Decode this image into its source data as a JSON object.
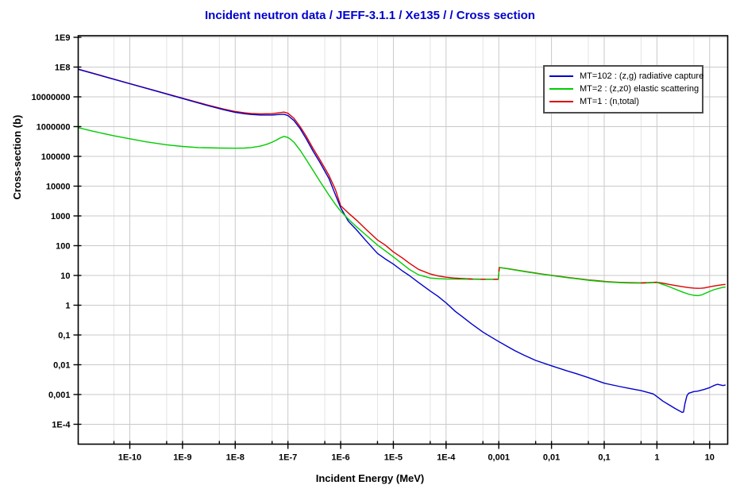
{
  "title": {
    "text": "Incident neutron data / JEFF-3.1.1 / Xe135 / / Cross section",
    "color": "#0000cc"
  },
  "axes": {
    "x": {
      "title": "Incident Energy (MeV)",
      "scale": "log",
      "major_ticks": [
        {
          "v": 1e-10,
          "label": "1E-10"
        },
        {
          "v": 1e-09,
          "label": "1E-9"
        },
        {
          "v": 1e-08,
          "label": "1E-8"
        },
        {
          "v": 1e-07,
          "label": "1E-7"
        },
        {
          "v": 1e-06,
          "label": "1E-6"
        },
        {
          "v": 1e-05,
          "label": "1E-5"
        },
        {
          "v": 0.0001,
          "label": "1E-4"
        },
        {
          "v": 0.001,
          "label": "0,001"
        },
        {
          "v": 0.01,
          "label": "0,01"
        },
        {
          "v": 0.1,
          "label": "0,1"
        },
        {
          "v": 1,
          "label": "1"
        },
        {
          "v": 10,
          "label": "10"
        }
      ],
      "minor_ticks": [
        5e-11,
        5e-10,
        5e-09,
        5e-08,
        5e-07,
        5e-06,
        5e-05,
        0.0005,
        0.005,
        0.05,
        0.5,
        5
      ]
    },
    "y": {
      "title": "Cross-section (b)",
      "scale": "log",
      "major_ticks": [
        {
          "v": 1000000000.0,
          "label": "1E9"
        },
        {
          "v": 100000000.0,
          "label": "1E8"
        },
        {
          "v": 10000000.0,
          "label": "10000000"
        },
        {
          "v": 1000000.0,
          "label": "1000000"
        },
        {
          "v": 100000.0,
          "label": "100000"
        },
        {
          "v": 10000.0,
          "label": "10000"
        },
        {
          "v": 1000.0,
          "label": "1000"
        },
        {
          "v": 100,
          "label": "100"
        },
        {
          "v": 10,
          "label": "10"
        },
        {
          "v": 1,
          "label": "1"
        },
        {
          "v": 0.1,
          "label": "0,1"
        },
        {
          "v": 0.01,
          "label": "0,01"
        },
        {
          "v": 0.001,
          "label": "0,001"
        },
        {
          "v": 0.0001,
          "label": "1E-4"
        }
      ]
    }
  },
  "legend": {
    "entries": [
      {
        "label": "MT=102 : (z,g) radiative capture",
        "color": "#0000cc"
      },
      {
        "label": "MT=2 : (z,z0) elastic scattering",
        "color": "#00cc00"
      },
      {
        "label": "MT=1 : (n,total)",
        "color": "#dd0000"
      }
    ]
  },
  "chart_data": {
    "type": "line",
    "title": "Incident neutron data / JEFF-3.1.1 / Xe135 / / Cross section",
    "xlabel": "Incident Energy (MeV)",
    "ylabel": "Cross-section (b)",
    "xscale": "log",
    "yscale": "log",
    "xlim": [
      1.05e-11,
      22
    ],
    "ylim": [
      2.15e-05,
      1130000000.0
    ],
    "grid": {
      "major_color": "#c9c9c9",
      "minor_color": "#e4e4e4"
    },
    "legend_position": "top-right",
    "series": [
      {
        "name": "MT=102 : (z,g) radiative capture",
        "color": "#0000cc",
        "points": [
          [
            1.05e-11,
            84000000.0
          ],
          [
            3e-11,
            50000000.0
          ],
          [
            1e-10,
            27500000.0
          ],
          [
            3e-10,
            16000000.0
          ],
          [
            1e-09,
            8800000.0
          ],
          [
            3e-09,
            5100000.0
          ],
          [
            6e-09,
            3700000.0
          ],
          [
            1e-08,
            3000000.0
          ],
          [
            1.5e-08,
            2700000.0
          ],
          [
            2e-08,
            2550000.0
          ],
          [
            3e-08,
            2450000.0
          ],
          [
            5e-08,
            2450000.0
          ],
          [
            7e-08,
            2550000.0
          ],
          [
            8.4e-08,
            2600000.0
          ],
          [
            1e-07,
            2350000.0
          ],
          [
            1.3e-07,
            1600000.0
          ],
          [
            1.7e-07,
            850000.0
          ],
          [
            2.2e-07,
            400000.0
          ],
          [
            3e-07,
            150000.0
          ],
          [
            4e-07,
            65000.0
          ],
          [
            6e-07,
            18000.0
          ],
          [
            8e-07,
            5000.0
          ],
          [
            1e-06,
            1900.0
          ],
          [
            1.4e-06,
            660.0
          ],
          [
            2e-06,
            340.0
          ],
          [
            3e-06,
            150.0
          ],
          [
            5e-06,
            55.0
          ],
          [
            7e-06,
            36.0
          ],
          [
            1e-05,
            24.0
          ],
          [
            1.5e-05,
            14.0
          ],
          [
            2e-05,
            10.0
          ],
          [
            3e-05,
            5.8
          ],
          [
            5e-05,
            3.0
          ],
          [
            7e-05,
            2.0
          ],
          [
            0.0001,
            1.2
          ],
          [
            0.00015,
            0.62
          ],
          [
            0.0002,
            0.42
          ],
          [
            0.0003,
            0.24
          ],
          [
            0.0005,
            0.125
          ],
          [
            0.0007,
            0.087
          ],
          [
            0.001,
            0.06
          ],
          [
            0.002,
            0.03
          ],
          [
            0.003,
            0.021
          ],
          [
            0.005,
            0.014
          ],
          [
            0.01,
            0.0092
          ],
          [
            0.02,
            0.0062
          ],
          [
            0.03,
            0.005
          ],
          [
            0.05,
            0.0037
          ],
          [
            0.1,
            0.0024
          ],
          [
            0.2,
            0.00185
          ],
          [
            0.3,
            0.0016
          ],
          [
            0.5,
            0.00135
          ],
          [
            0.7,
            0.00115
          ],
          [
            0.85,
            0.00105
          ],
          [
            1,
            0.00085
          ],
          [
            1.3,
            0.0006
          ],
          [
            1.7,
            0.00045
          ],
          [
            2.2,
            0.00034
          ],
          [
            2.7,
            0.00028
          ],
          [
            3,
            0.00025
          ],
          [
            3.2,
            0.00026
          ],
          [
            3.4,
            0.0005
          ],
          [
            3.7,
            0.0009
          ],
          [
            4,
            0.0011
          ],
          [
            5,
            0.00125
          ],
          [
            6,
            0.0013
          ],
          [
            8,
            0.0015
          ],
          [
            10,
            0.0017
          ],
          [
            12,
            0.002
          ],
          [
            14,
            0.0022
          ],
          [
            16,
            0.0021
          ],
          [
            18,
            0.002
          ],
          [
            20,
            0.0021
          ]
        ]
      },
      {
        "name": "MT=2 : (z,z0) elastic scattering",
        "color": "#00cc00",
        "points": [
          [
            1.05e-11,
            920000.0
          ],
          [
            2e-11,
            700000.0
          ],
          [
            5e-11,
            490000.0
          ],
          [
            1e-10,
            390000.0
          ],
          [
            2e-10,
            310000.0
          ],
          [
            5e-10,
            245000.0
          ],
          [
            1e-09,
            215000.0
          ],
          [
            2e-09,
            198000.0
          ],
          [
            5e-09,
            190000.0
          ],
          [
            1e-08,
            188000.0
          ],
          [
            1.5e-08,
            190000.0
          ],
          [
            2e-08,
            198000.0
          ],
          [
            3e-08,
            220000.0
          ],
          [
            4e-08,
            255000.0
          ],
          [
            5e-08,
            300000.0
          ],
          [
            6e-08,
            350000.0
          ],
          [
            7e-08,
            410000.0
          ],
          [
            8.4e-08,
            470000.0
          ],
          [
            1e-07,
            430000.0
          ],
          [
            1.15e-07,
            360000.0
          ],
          [
            1.3e-07,
            300000.0
          ],
          [
            1.7e-07,
            160000.0
          ],
          [
            2.2e-07,
            80000.0
          ],
          [
            3e-07,
            34000.0
          ],
          [
            4e-07,
            15000.0
          ],
          [
            6e-07,
            5000.0
          ],
          [
            8e-07,
            2400.0
          ],
          [
            1e-06,
            1450.0
          ],
          [
            1.4e-06,
            780.0
          ],
          [
            2e-06,
            430.0
          ],
          [
            3e-06,
            230.0
          ],
          [
            5e-06,
            105.0
          ],
          [
            7e-06,
            68.0
          ],
          [
            1e-05,
            42.0
          ],
          [
            1.5e-05,
            24.0
          ],
          [
            2e-05,
            16.0
          ],
          [
            3e-05,
            10.5
          ],
          [
            5e-05,
            8.2
          ],
          [
            7e-05,
            7.8
          ],
          [
            0.0001,
            7.6
          ],
          [
            0.0002,
            7.5
          ],
          [
            0.0003,
            7.45
          ],
          [
            0.0005,
            7.4
          ],
          [
            0.00098,
            7.4
          ],
          [
            0.00102,
            18.4
          ],
          [
            0.0015,
            16.6
          ],
          [
            0.002,
            15.3
          ],
          [
            0.003,
            13.6
          ],
          [
            0.005,
            11.8
          ],
          [
            0.007,
            10.8
          ],
          [
            0.01,
            9.9
          ],
          [
            0.015,
            9.0
          ],
          [
            0.02,
            8.4
          ],
          [
            0.03,
            7.7
          ],
          [
            0.05,
            6.9
          ],
          [
            0.07,
            6.5
          ],
          [
            0.1,
            6.15
          ],
          [
            0.15,
            5.85
          ],
          [
            0.2,
            5.7
          ],
          [
            0.3,
            5.55
          ],
          [
            0.5,
            5.5
          ],
          [
            0.7,
            5.6
          ],
          [
            0.85,
            5.75
          ],
          [
            1,
            5.8
          ],
          [
            1.3,
            5.0
          ],
          [
            1.7,
            4.2
          ],
          [
            2.2,
            3.5
          ],
          [
            3,
            2.8
          ],
          [
            4,
            2.35
          ],
          [
            5,
            2.15
          ],
          [
            6,
            2.1
          ],
          [
            7,
            2.2
          ],
          [
            8,
            2.45
          ],
          [
            10,
            2.9
          ],
          [
            12,
            3.3
          ],
          [
            15,
            3.7
          ],
          [
            18,
            4.0
          ],
          [
            20,
            4.1
          ]
        ]
      },
      {
        "name": "MT=1 : (n,total)",
        "color": "#dd0000",
        "points": [
          [
            1.05e-11,
            85000000.0
          ],
          [
            3e-11,
            51000000.0
          ],
          [
            1e-10,
            27900000.0
          ],
          [
            3e-10,
            16300000.0
          ],
          [
            1e-09,
            9000000.0
          ],
          [
            3e-09,
            5300000.0
          ],
          [
            6e-09,
            3900000.0
          ],
          [
            1e-08,
            3200000.0
          ],
          [
            1.5e-08,
            2900000.0
          ],
          [
            2e-08,
            2750000.0
          ],
          [
            3e-08,
            2670000.0
          ],
          [
            5e-08,
            2720000.0
          ],
          [
            7e-08,
            2950000.0
          ],
          [
            8.4e-08,
            3070000.0
          ],
          [
            1e-07,
            2800000.0
          ],
          [
            1.3e-07,
            1900000.0
          ],
          [
            1.7e-07,
            1000000.0
          ],
          [
            2.2e-07,
            490000.0
          ],
          [
            3e-07,
            185000.0
          ],
          [
            4e-07,
            80000.0
          ],
          [
            6e-07,
            23000.0
          ],
          [
            8e-07,
            7500.0
          ],
          [
            1e-06,
            2200.0
          ],
          [
            1.4e-06,
            1250.0
          ],
          [
            2e-06,
            720.0
          ],
          [
            3e-06,
            360.0
          ],
          [
            5e-06,
            155.0
          ],
          [
            7e-06,
            105.0
          ],
          [
            1e-05,
            62.0
          ],
          [
            1.5e-05,
            38.0
          ],
          [
            2e-05,
            26.0
          ],
          [
            3e-05,
            16.0
          ],
          [
            5e-05,
            11.2
          ],
          [
            7e-05,
            9.6
          ],
          [
            0.0001,
            8.7
          ],
          [
            0.00015,
            8.1
          ],
          [
            0.0002,
            7.9
          ],
          [
            0.0003,
            7.6
          ],
          [
            0.0005,
            7.5
          ],
          [
            0.00098,
            7.45
          ],
          [
            0.00102,
            18.6
          ],
          [
            0.0015,
            16.8
          ],
          [
            0.002,
            15.5
          ],
          [
            0.003,
            13.8
          ],
          [
            0.005,
            12.0
          ],
          [
            0.007,
            11.0
          ],
          [
            0.01,
            10.1
          ],
          [
            0.015,
            9.2
          ],
          [
            0.02,
            8.6
          ],
          [
            0.03,
            7.9
          ],
          [
            0.05,
            7.1
          ],
          [
            0.07,
            6.7
          ],
          [
            0.1,
            6.3
          ],
          [
            0.15,
            6.0
          ],
          [
            0.2,
            5.85
          ],
          [
            0.3,
            5.7
          ],
          [
            0.5,
            5.65
          ],
          [
            0.7,
            5.75
          ],
          [
            0.85,
            5.85
          ],
          [
            1,
            5.9
          ],
          [
            1.3,
            5.5
          ],
          [
            1.7,
            5.0
          ],
          [
            2.2,
            4.6
          ],
          [
            3,
            4.2
          ],
          [
            4,
            3.9
          ],
          [
            5,
            3.75
          ],
          [
            6,
            3.7
          ],
          [
            7,
            3.72
          ],
          [
            8,
            3.8
          ],
          [
            10,
            4.15
          ],
          [
            12,
            4.4
          ],
          [
            15,
            4.7
          ],
          [
            18,
            4.9
          ],
          [
            20,
            5.0
          ]
        ]
      }
    ],
    "overlap_dash_regions": [
      [
        0.00015,
        0.00103
      ],
      [
        0.5,
        1.05
      ]
    ]
  }
}
